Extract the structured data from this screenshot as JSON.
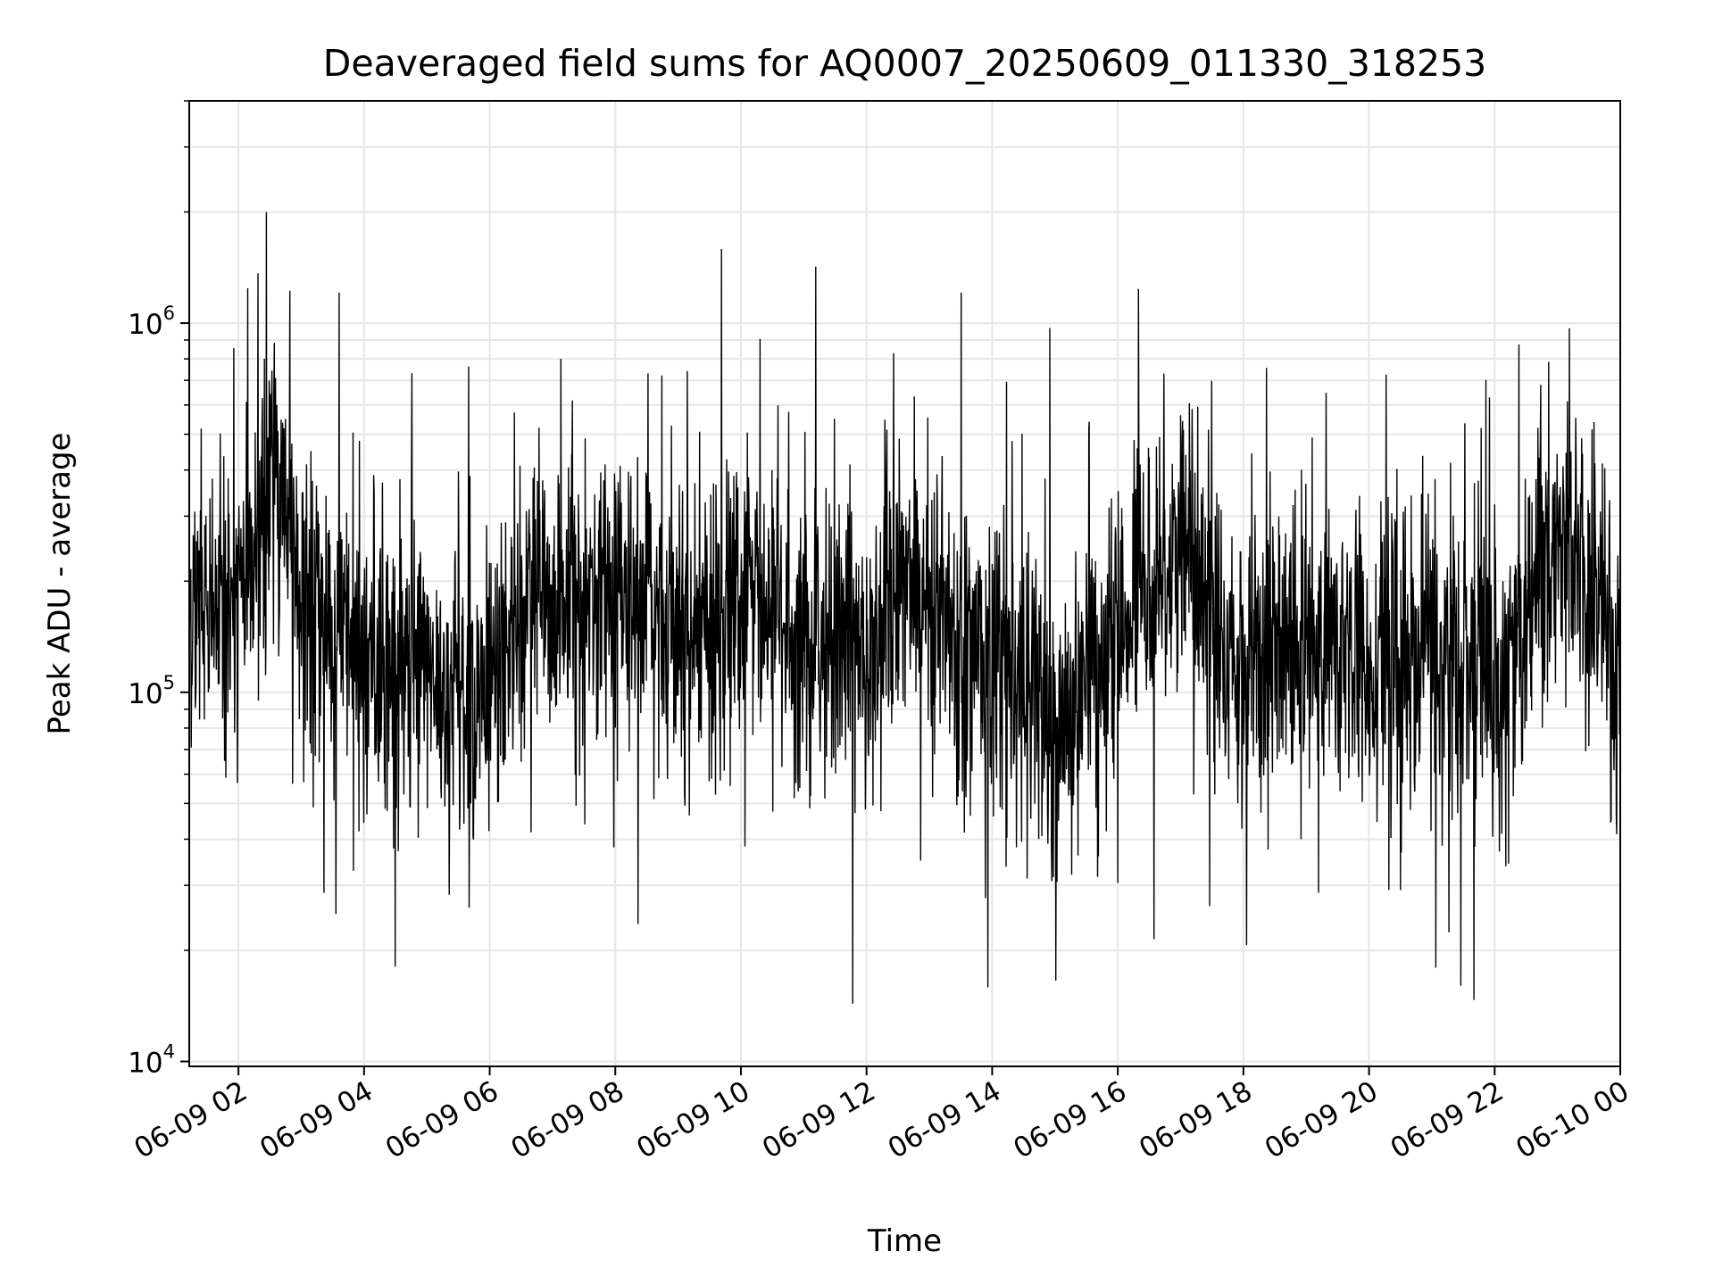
{
  "chart_data": {
    "type": "line",
    "title": "Deaveraged field sums for AQ0007_20250609_011330_318253",
    "xlabel": "Time",
    "ylabel": "Peak ADU - average",
    "y_scale": "log",
    "ylim": [
      9700,
      4000000
    ],
    "xlim": [
      "2025-06-09 01:13",
      "2025-06-10 00:00"
    ],
    "x_ticks": [
      {
        "time": "2025-06-09 02:00",
        "label": "06-09 02"
      },
      {
        "time": "2025-06-09 04:00",
        "label": "06-09 04"
      },
      {
        "time": "2025-06-09 06:00",
        "label": "06-09 06"
      },
      {
        "time": "2025-06-09 08:00",
        "label": "06-09 08"
      },
      {
        "time": "2025-06-09 10:00",
        "label": "06-09 10"
      },
      {
        "time": "2025-06-09 12:00",
        "label": "06-09 12"
      },
      {
        "time": "2025-06-09 14:00",
        "label": "06-09 14"
      },
      {
        "time": "2025-06-09 16:00",
        "label": "06-09 16"
      },
      {
        "time": "2025-06-09 18:00",
        "label": "06-09 18"
      },
      {
        "time": "2025-06-09 20:00",
        "label": "06-09 20"
      },
      {
        "time": "2025-06-09 22:00",
        "label": "06-09 22"
      },
      {
        "time": "2025-06-10 00:00",
        "label": "06-10 00"
      }
    ],
    "y_ticks": [
      {
        "value": 10000,
        "base": "10",
        "exp": "4"
      },
      {
        "value": 100000,
        "base": "10",
        "exp": "5"
      },
      {
        "value": 1000000,
        "base": "10",
        "exp": "6"
      }
    ],
    "grid": true,
    "colors": {
      "line": "#000000",
      "grid": "#e6e6e6",
      "axes": "#000000"
    },
    "series": [
      {
        "x": [
          "2025-06-09 01:13",
          "2025-06-09 01:30",
          "2025-06-09 01:45",
          "2025-06-09 02:00",
          "2025-06-09 02:15",
          "2025-06-09 02:30",
          "2025-06-09 02:45",
          "2025-06-09 03:00",
          "2025-06-09 03:15",
          "2025-06-09 03:30",
          "2025-06-09 03:45",
          "2025-06-09 04:00",
          "2025-06-09 04:15",
          "2025-06-09 04:30",
          "2025-06-09 04:45",
          "2025-06-09 05:00",
          "2025-06-09 05:15",
          "2025-06-09 05:30",
          "2025-06-09 05:45",
          "2025-06-09 06:00",
          "2025-06-09 06:15",
          "2025-06-09 06:30",
          "2025-06-09 06:45",
          "2025-06-09 07:00",
          "2025-06-09 07:15",
          "2025-06-09 07:30",
          "2025-06-09 07:45",
          "2025-06-09 08:00",
          "2025-06-09 08:15",
          "2025-06-09 08:30",
          "2025-06-09 08:45",
          "2025-06-09 09:00",
          "2025-06-09 09:15",
          "2025-06-09 09:30",
          "2025-06-09 09:45",
          "2025-06-09 10:00",
          "2025-06-09 10:15",
          "2025-06-09 10:30",
          "2025-06-09 10:45",
          "2025-06-09 11:00",
          "2025-06-09 11:15",
          "2025-06-09 11:30",
          "2025-06-09 11:45",
          "2025-06-09 12:00",
          "2025-06-09 12:15",
          "2025-06-09 12:30",
          "2025-06-09 12:45",
          "2025-06-09 13:00",
          "2025-06-09 13:15",
          "2025-06-09 13:30",
          "2025-06-09 13:45",
          "2025-06-09 14:00",
          "2025-06-09 14:15",
          "2025-06-09 14:30",
          "2025-06-09 14:45",
          "2025-06-09 15:00",
          "2025-06-09 15:15",
          "2025-06-09 15:30",
          "2025-06-09 15:45",
          "2025-06-09 16:00",
          "2025-06-09 16:15",
          "2025-06-09 16:30",
          "2025-06-09 16:45",
          "2025-06-09 17:00",
          "2025-06-09 17:15",
          "2025-06-09 17:30",
          "2025-06-09 17:45",
          "2025-06-09 18:00",
          "2025-06-09 18:15",
          "2025-06-09 18:30",
          "2025-06-09 18:45",
          "2025-06-09 19:00",
          "2025-06-09 19:15",
          "2025-06-09 19:30",
          "2025-06-09 19:45",
          "2025-06-09 20:00",
          "2025-06-09 20:15",
          "2025-06-09 20:30",
          "2025-06-09 20:45",
          "2025-06-09 21:00",
          "2025-06-09 21:15",
          "2025-06-09 21:30",
          "2025-06-09 21:45",
          "2025-06-09 22:00",
          "2025-06-09 22:15",
          "2025-06-09 22:30",
          "2025-06-09 22:45",
          "2025-06-09 23:00",
          "2025-06-09 23:15",
          "2025-06-09 23:30",
          "2025-06-09 23:45",
          "2025-06-10 00:00"
        ],
        "y": [
          180000,
          170000,
          150000,
          160000,
          250000,
          400000,
          350000,
          170000,
          150000,
          140000,
          130000,
          120000,
          130000,
          110000,
          120000,
          110000,
          100000,
          105000,
          95000,
          100000,
          130000,
          160000,
          190000,
          170000,
          160000,
          180000,
          190000,
          200000,
          180000,
          170000,
          160000,
          180000,
          130000,
          150000,
          170000,
          160000,
          180000,
          150000,
          140000,
          140000,
          130000,
          150000,
          140000,
          130000,
          160000,
          220000,
          200000,
          180000,
          160000,
          140000,
          130000,
          120000,
          110000,
          100000,
          90000,
          80000,
          90000,
          100000,
          120000,
          150000,
          180000,
          210000,
          230000,
          250000,
          200000,
          160000,
          130000,
          120000,
          130000,
          140000,
          130000,
          120000,
          130000,
          140000,
          130000,
          130000,
          120000,
          130000,
          120000,
          120000,
          110000,
          120000,
          120000,
          110000,
          120000,
          140000,
          250000,
          280000,
          250000,
          180000,
          150000,
          90000
        ]
      }
    ]
  }
}
